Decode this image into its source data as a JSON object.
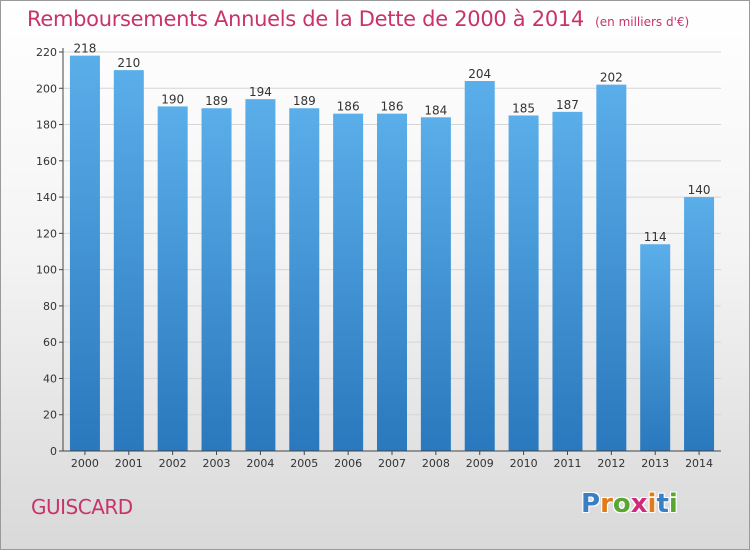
{
  "title": "Remboursements Annuels de la Dette de 2000 à 2014",
  "unit": "(en milliers d'€)",
  "footer_name": "GUISCARD",
  "logo": {
    "text": "Proxiti",
    "letters": [
      "P",
      "r",
      "o",
      "x",
      "i",
      "t",
      "i"
    ],
    "colors": [
      "#3a7fc4",
      "#e07b1a",
      "#5aa632",
      "#d02a7a",
      "#e07b1a",
      "#3a7fc4",
      "#5aa632"
    ]
  },
  "colors": {
    "bar_top": "#5aaee9",
    "bar_bottom": "#2a78bd",
    "axis": "#444444",
    "grid": "#d6d6d6",
    "title": "#c8336b"
  },
  "chart_data": {
    "type": "bar",
    "title": "Remboursements Annuels de la Dette de 2000 à 2014",
    "xlabel": "",
    "ylabel": "",
    "categories": [
      "2000",
      "2001",
      "2002",
      "2003",
      "2004",
      "2005",
      "2006",
      "2007",
      "2008",
      "2009",
      "2010",
      "2011",
      "2012",
      "2013",
      "2014"
    ],
    "values": [
      218,
      210,
      190,
      189,
      194,
      189,
      186,
      186,
      184,
      204,
      185,
      187,
      202,
      114,
      140
    ],
    "ylim": [
      0,
      220
    ],
    "yticks": [
      0,
      20,
      40,
      60,
      80,
      100,
      120,
      140,
      160,
      180,
      200,
      220
    ],
    "grid": true,
    "data_labels": true
  }
}
